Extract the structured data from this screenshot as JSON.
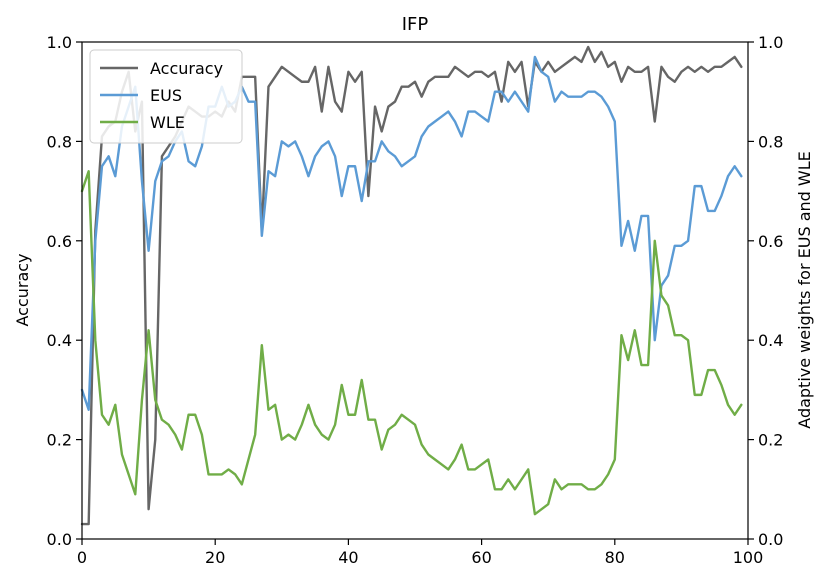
{
  "chart_data": {
    "type": "line",
    "title": "IFP",
    "xlabel": "",
    "ylabel": "Accuracy",
    "ylabel_right": "Adaptive weights for EUS and WLE",
    "xlim": [
      0,
      100
    ],
    "ylim": [
      0,
      1.0
    ],
    "ylim_right": [
      0,
      1.0
    ],
    "x_ticks": [
      0,
      20,
      40,
      60,
      80,
      100
    ],
    "x_tick_labels": [
      "0",
      "20",
      "40",
      "60",
      "80",
      "100"
    ],
    "y_ticks": [
      0,
      0.2,
      0.4,
      0.6,
      0.8,
      1.0
    ],
    "y_tick_labels": [
      "0.0",
      "0.2",
      "0.4",
      "0.6",
      "0.8",
      "1.0"
    ],
    "y_tick_labels_right": [
      "0.0",
      "0.2",
      "0.4",
      "0.6",
      "0.8",
      "1.0"
    ],
    "grid": false,
    "legend_position": "top-left",
    "series": [
      {
        "name": "Accuracy",
        "axis": "left",
        "color": "#666666",
        "values": [
          0.03,
          0.03,
          0.62,
          0.81,
          0.83,
          0.84,
          0.9,
          0.94,
          0.82,
          0.88,
          0.06,
          0.2,
          0.77,
          0.79,
          0.81,
          0.84,
          0.87,
          0.86,
          0.85,
          0.85,
          0.86,
          0.85,
          0.88,
          0.86,
          0.93,
          0.93,
          0.93,
          0.62,
          0.91,
          0.93,
          0.95,
          0.94,
          0.93,
          0.92,
          0.92,
          0.95,
          0.86,
          0.95,
          0.88,
          0.86,
          0.94,
          0.92,
          0.94,
          0.69,
          0.87,
          0.82,
          0.87,
          0.88,
          0.91,
          0.91,
          0.92,
          0.89,
          0.92,
          0.93,
          0.93,
          0.93,
          0.95,
          0.94,
          0.93,
          0.94,
          0.94,
          0.93,
          0.94,
          0.88,
          0.96,
          0.94,
          0.96,
          0.87,
          0.96,
          0.94,
          0.96,
          0.94,
          0.95,
          0.96,
          0.97,
          0.96,
          0.99,
          0.96,
          0.98,
          0.95,
          0.96,
          0.92,
          0.95,
          0.94,
          0.94,
          0.95,
          0.84,
          0.95,
          0.93,
          0.92,
          0.94,
          0.95,
          0.94,
          0.95,
          0.94,
          0.95,
          0.95,
          0.96,
          0.97,
          0.95
        ]
      },
      {
        "name": "EUS",
        "axis": "right",
        "color": "#5b9bd5",
        "values": [
          0.3,
          0.26,
          0.6,
          0.75,
          0.77,
          0.73,
          0.83,
          0.87,
          0.91,
          0.72,
          0.58,
          0.72,
          0.76,
          0.77,
          0.8,
          0.82,
          0.76,
          0.75,
          0.79,
          0.87,
          0.87,
          0.91,
          0.87,
          0.88,
          0.91,
          0.88,
          0.88,
          0.61,
          0.74,
          0.73,
          0.8,
          0.79,
          0.8,
          0.77,
          0.73,
          0.77,
          0.79,
          0.8,
          0.77,
          0.69,
          0.75,
          0.75,
          0.68,
          0.76,
          0.76,
          0.8,
          0.78,
          0.77,
          0.75,
          0.76,
          0.77,
          0.81,
          0.83,
          0.84,
          0.85,
          0.86,
          0.84,
          0.81,
          0.86,
          0.86,
          0.85,
          0.84,
          0.9,
          0.9,
          0.88,
          0.9,
          0.88,
          0.86,
          0.97,
          0.94,
          0.93,
          0.88,
          0.9,
          0.89,
          0.89,
          0.89,
          0.9,
          0.9,
          0.89,
          0.87,
          0.84,
          0.59,
          0.64,
          0.58,
          0.65,
          0.65,
          0.4,
          0.51,
          0.53,
          0.59,
          0.59,
          0.6,
          0.71,
          0.71,
          0.66,
          0.66,
          0.69,
          0.73,
          0.75,
          0.73
        ]
      },
      {
        "name": "WLE",
        "axis": "right",
        "color": "#70ad47",
        "values": [
          0.7,
          0.74,
          0.4,
          0.25,
          0.23,
          0.27,
          0.17,
          0.13,
          0.09,
          0.28,
          0.42,
          0.28,
          0.24,
          0.23,
          0.21,
          0.18,
          0.25,
          0.25,
          0.21,
          0.13,
          0.13,
          0.13,
          0.14,
          0.13,
          0.11,
          0.16,
          0.21,
          0.39,
          0.26,
          0.27,
          0.2,
          0.21,
          0.2,
          0.23,
          0.27,
          0.23,
          0.21,
          0.2,
          0.23,
          0.31,
          0.25,
          0.25,
          0.32,
          0.24,
          0.24,
          0.18,
          0.22,
          0.23,
          0.25,
          0.24,
          0.23,
          0.19,
          0.17,
          0.16,
          0.15,
          0.14,
          0.16,
          0.19,
          0.14,
          0.14,
          0.15,
          0.16,
          0.1,
          0.1,
          0.12,
          0.1,
          0.12,
          0.14,
          0.05,
          0.06,
          0.07,
          0.12,
          0.1,
          0.11,
          0.11,
          0.11,
          0.1,
          0.1,
          0.11,
          0.13,
          0.16,
          0.41,
          0.36,
          0.42,
          0.35,
          0.35,
          0.6,
          0.49,
          0.47,
          0.41,
          0.41,
          0.4,
          0.29,
          0.29,
          0.34,
          0.34,
          0.31,
          0.27,
          0.25,
          0.27
        ]
      }
    ]
  }
}
